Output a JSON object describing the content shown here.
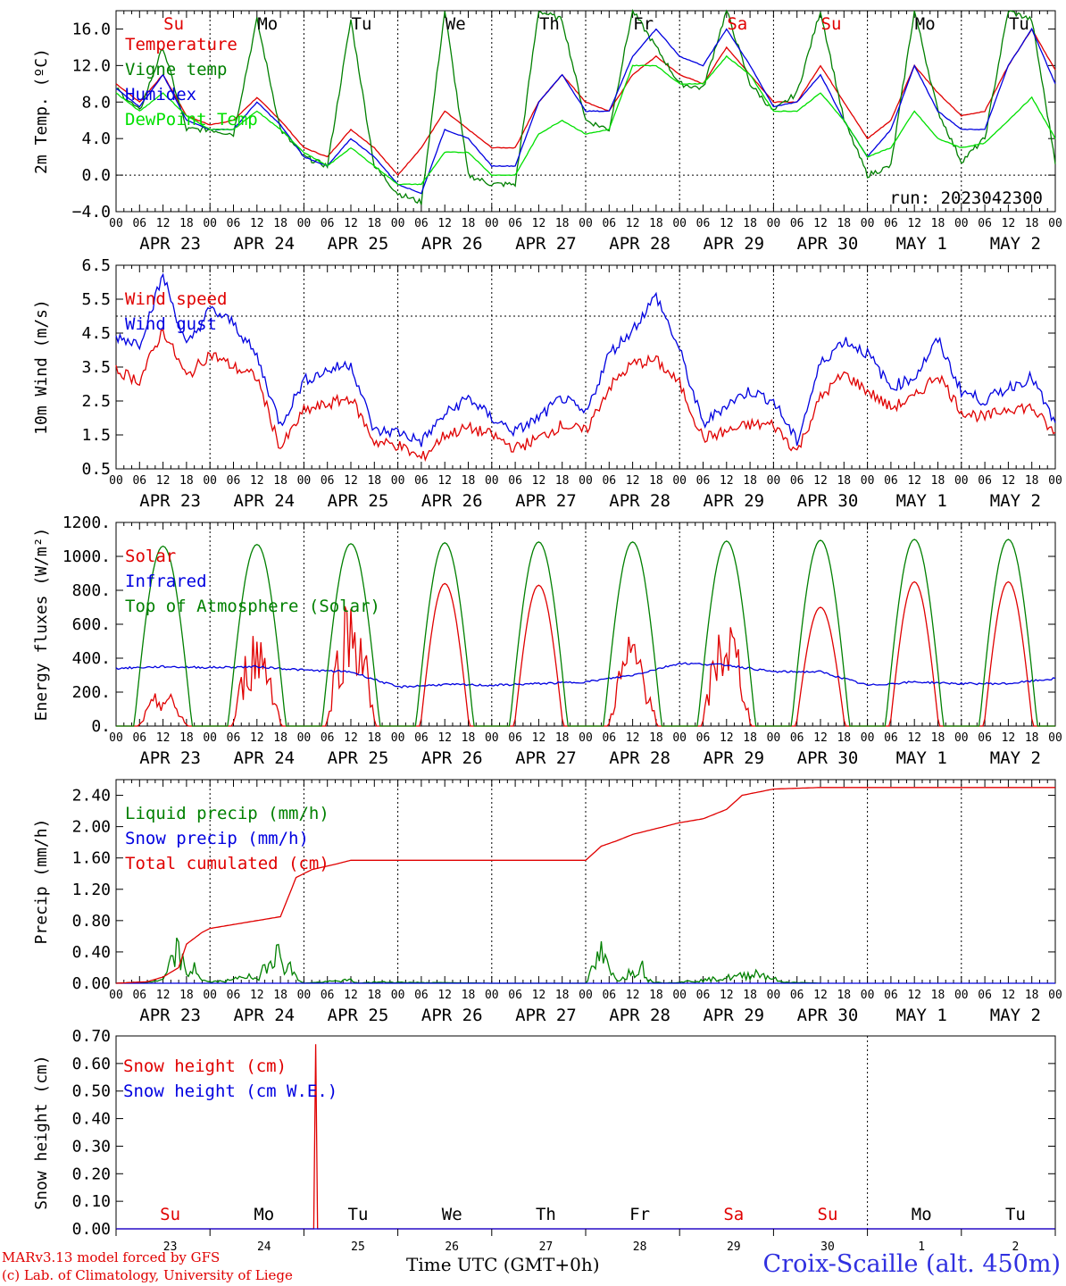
{
  "days": [
    "APR 23",
    "APR 24",
    "APR 25",
    "APR 26",
    "APR 27",
    "APR 28",
    "APR 29",
    "APR 30",
    "MAY  1",
    "MAY  2"
  ],
  "hour_labels": [
    "00",
    "06",
    "12",
    "18"
  ],
  "weekdays": [
    "Su",
    "Mo",
    "Tu",
    "We",
    "Th",
    "Fr",
    "Sa",
    "Su",
    "Mo",
    "Tu"
  ],
  "weekday_colors": [
    "#e00000",
    "#000000",
    "#000000",
    "#000000",
    "#000000",
    "#000000",
    "#e00000",
    "#e00000",
    "#000000",
    "#000000"
  ],
  "day_numbers": [
    "23",
    "24",
    "25",
    "26",
    "27",
    "28",
    "29",
    "30",
    "1",
    "2"
  ],
  "run_label": "run: 2023042300",
  "footer": {
    "model": "MARv3.13 model forced by GFS",
    "copyright": "(c) Lab. of Climatology, University of Liege",
    "time_axis": "Time UTC (GMT+0h)",
    "station": "Croix-Scaille (alt. 450m)"
  },
  "chart_data": [
    {
      "type": "line",
      "ylabel": "2m Temp. (ºC)",
      "ylim": [
        -4,
        18
      ],
      "yticks": [
        "16.0",
        "12.0",
        "8.0",
        "4.0",
        "0.0",
        "−4.0"
      ],
      "x_unit": "hours from 2023-04-23 00 UTC",
      "series": [
        {
          "name": "Temperature",
          "color": "#e00000",
          "x": [
            0,
            6,
            12,
            18,
            24,
            30,
            36,
            42,
            48,
            54,
            60,
            66,
            72,
            78,
            84,
            90,
            96,
            102,
            108,
            114,
            120,
            126,
            132,
            138,
            144,
            150,
            156,
            162,
            168,
            174,
            180,
            186,
            192,
            198,
            204,
            210,
            216,
            222,
            228,
            234,
            240
          ],
          "values": [
            10,
            8,
            11,
            6.5,
            5.5,
            6,
            8.5,
            6,
            3,
            2,
            5,
            3,
            0,
            3,
            7,
            5,
            3,
            3,
            8,
            11,
            8,
            7,
            11,
            13,
            11,
            10,
            14,
            11,
            8,
            8,
            12,
            8,
            4,
            6,
            12,
            9,
            6.5,
            7,
            12,
            16,
            11.5
          ]
        },
        {
          "name": "Vigne temp",
          "color": "#008000",
          "x": [
            0,
            6,
            12,
            18,
            24,
            30,
            36,
            42,
            48,
            54,
            60,
            66,
            72,
            78,
            84,
            90,
            96,
            102,
            108,
            114,
            120,
            126,
            132,
            138,
            144,
            150,
            156,
            162,
            168,
            174,
            180,
            186,
            192,
            198,
            204,
            210,
            216,
            222,
            228,
            234,
            240
          ],
          "values": [
            9.5,
            7,
            14,
            5,
            5,
            4.5,
            17,
            5,
            2,
            1,
            17,
            1,
            -2,
            -3,
            18,
            0,
            -1,
            -1,
            18,
            17,
            6,
            5,
            18,
            14,
            10,
            9.5,
            18,
            10,
            7,
            9,
            18,
            6,
            0,
            1,
            18,
            7,
            1.5,
            4,
            18,
            17,
            1.5
          ]
        },
        {
          "name": "Humidex",
          "color": "#0000e0",
          "x": [
            0,
            6,
            12,
            18,
            24,
            30,
            36,
            42,
            48,
            54,
            60,
            66,
            72,
            78,
            84,
            90,
            96,
            102,
            108,
            114,
            120,
            126,
            132,
            138,
            144,
            150,
            156,
            162,
            168,
            174,
            180,
            186,
            192,
            198,
            204,
            210,
            216,
            222,
            228,
            234,
            240
          ],
          "values": [
            9.5,
            7.5,
            11,
            6,
            5,
            5,
            8,
            5.5,
            2,
            1,
            4,
            2,
            -1,
            -2,
            5,
            4,
            1,
            1,
            8,
            11,
            7,
            7,
            13,
            16,
            13,
            12,
            16,
            12,
            7.5,
            8,
            11,
            6,
            2,
            5,
            12,
            7,
            5,
            5,
            12,
            16,
            10
          ]
        },
        {
          "name": "DewPoint Temp",
          "color": "#00e000",
          "x": [
            0,
            6,
            12,
            18,
            24,
            30,
            36,
            42,
            48,
            54,
            60,
            66,
            72,
            78,
            84,
            90,
            96,
            102,
            108,
            114,
            120,
            126,
            132,
            138,
            144,
            150,
            156,
            162,
            168,
            174,
            180,
            186,
            192,
            198,
            204,
            210,
            216,
            222,
            228,
            234,
            240
          ],
          "values": [
            9,
            7,
            9,
            6.5,
            5,
            5,
            7,
            5,
            2.5,
            1,
            3,
            1,
            -1,
            -1,
            2.5,
            2.5,
            0,
            0,
            4.5,
            6,
            4.5,
            5,
            12,
            12,
            10,
            10,
            13,
            11,
            7,
            7,
            9,
            6,
            2,
            3,
            7,
            4,
            3,
            3.5,
            6,
            8.5,
            4
          ]
        }
      ]
    },
    {
      "type": "line",
      "ylabel": "10m Wind (m/s)",
      "ylim": [
        0.5,
        6.5
      ],
      "yticks": [
        "6.5",
        "5.5",
        "4.5",
        "3.5",
        "2.5",
        "1.5",
        "0.5"
      ],
      "x_unit": "hours from 2023-04-23 00 UTC",
      "series": [
        {
          "name": "Wind speed",
          "color": "#e00000",
          "x": [
            0,
            6,
            12,
            18,
            24,
            30,
            36,
            42,
            48,
            54,
            60,
            66,
            72,
            78,
            84,
            90,
            96,
            102,
            108,
            114,
            120,
            126,
            132,
            138,
            144,
            150,
            156,
            162,
            168,
            174,
            180,
            186,
            192,
            198,
            204,
            210,
            216,
            222,
            228,
            234,
            240
          ],
          "values": [
            3.4,
            3.1,
            4.6,
            3.2,
            3.9,
            3.5,
            3.2,
            1.1,
            2.2,
            2.4,
            2.6,
            1.3,
            1.2,
            0.8,
            1.5,
            1.7,
            1.5,
            1.1,
            1.4,
            1.8,
            1.6,
            2.9,
            3.6,
            3.7,
            3.0,
            1.4,
            1.6,
            1.8,
            1.8,
            1.0,
            2.6,
            3.3,
            2.8,
            2.3,
            2.6,
            3.3,
            2.2,
            2.0,
            2.3,
            2.3,
            1.5
          ]
        },
        {
          "name": "Wind gust",
          "color": "#0000e0",
          "x": [
            0,
            6,
            12,
            18,
            24,
            30,
            36,
            42,
            48,
            54,
            60,
            66,
            72,
            78,
            84,
            90,
            96,
            102,
            108,
            114,
            120,
            126,
            132,
            138,
            144,
            150,
            156,
            162,
            168,
            174,
            180,
            186,
            192,
            198,
            204,
            210,
            216,
            222,
            228,
            234,
            240
          ],
          "values": [
            4.4,
            4.2,
            6.2,
            4.1,
            5.2,
            4.8,
            3.8,
            1.8,
            3.1,
            3.4,
            3.6,
            1.6,
            1.6,
            1.3,
            2.1,
            2.6,
            2.0,
            1.6,
            2.0,
            2.6,
            2.1,
            3.9,
            4.6,
            5.6,
            4.0,
            1.8,
            2.4,
            2.8,
            2.5,
            1.3,
            3.6,
            4.3,
            3.9,
            2.9,
            3.2,
            4.3,
            2.8,
            2.5,
            2.9,
            3.2,
            1.8
          ]
        }
      ]
    },
    {
      "type": "line",
      "ylabel": "Energy fluxes (W/m²)",
      "ylim": [
        0,
        1200
      ],
      "yticks": [
        "1200.",
        "1000.",
        "800.",
        "600.",
        "400.",
        "200.",
        "0."
      ],
      "x_unit": "hours from 2023-04-23 00 UTC",
      "series": [
        {
          "name": "Solar",
          "color": "#e00000",
          "daily_peak": [
            220,
            610,
            820,
            840,
            830,
            570,
            690,
            700,
            850,
            850
          ]
        },
        {
          "name": "Infrared",
          "color": "#0000e0",
          "x": [
            0,
            12,
            24,
            36,
            48,
            60,
            72,
            84,
            96,
            108,
            120,
            132,
            144,
            156,
            168,
            180,
            192,
            204,
            216,
            228,
            240
          ],
          "values": [
            340,
            350,
            345,
            350,
            330,
            320,
            230,
            245,
            240,
            250,
            260,
            300,
            370,
            360,
            320,
            320,
            240,
            260,
            250,
            250,
            280
          ]
        },
        {
          "name": "Top of Atmosphere (Solar)",
          "color": "#008000",
          "daily_peak": [
            1060,
            1070,
            1075,
            1080,
            1085,
            1085,
            1090,
            1095,
            1100,
            1100
          ]
        }
      ]
    },
    {
      "type": "line",
      "ylabel": "Precip (mm/h)",
      "ylim": [
        0,
        2.6
      ],
      "yticks": [
        "2.40",
        "2.00",
        "1.60",
        "1.20",
        "0.80",
        "0.40",
        "0.00"
      ],
      "x_unit": "hours from 2023-04-23 00 UTC",
      "series": [
        {
          "name": "Liquid precip (mm/h)",
          "color": "#008000",
          "x": [
            0,
            8,
            12,
            14,
            16,
            18,
            20,
            22,
            24,
            30,
            32,
            36,
            40,
            42,
            44,
            46,
            48,
            60,
            62,
            66,
            96,
            120,
            124,
            126,
            128,
            132,
            134,
            136,
            138,
            140,
            150,
            160,
            164,
            168,
            170,
            180
          ],
          "values": [
            0,
            0.02,
            0.05,
            0.3,
            0.6,
            0.1,
            0.3,
            0.05,
            0.02,
            0.05,
            0.15,
            0.05,
            0.6,
            0.4,
            0.3,
            0.1,
            0,
            0.05,
            0,
            0.02,
            0,
            0,
            0.5,
            0.2,
            0.05,
            0.2,
            0.35,
            0.05,
            0.02,
            0,
            0.05,
            0.12,
            0.18,
            0.08,
            0.02,
            0
          ]
        },
        {
          "name": "Snow precip (mm/h)",
          "color": "#0000e0",
          "x": [
            0,
            240
          ],
          "values": [
            0,
            0
          ]
        },
        {
          "name": "Total cumulated (cm)",
          "color": "#e00000",
          "x": [
            0,
            8,
            12,
            16,
            18,
            22,
            24,
            30,
            36,
            42,
            46,
            50,
            56,
            60,
            72,
            120,
            124,
            128,
            132,
            144,
            150,
            156,
            160,
            168,
            180,
            240
          ],
          "values": [
            0,
            0.02,
            0.08,
            0.2,
            0.5,
            0.65,
            0.7,
            0.75,
            0.8,
            0.85,
            1.35,
            1.45,
            1.52,
            1.57,
            1.57,
            1.57,
            1.75,
            1.82,
            1.9,
            2.05,
            2.1,
            2.22,
            2.4,
            2.48,
            2.5,
            2.5
          ]
        }
      ]
    },
    {
      "type": "line",
      "ylabel": "Snow height (cm)",
      "ylim": [
        0,
        0.7
      ],
      "yticks": [
        "0.70",
        "0.60",
        "0.50",
        "0.40",
        "0.30",
        "0.20",
        "0.10",
        "0.00"
      ],
      "x_unit": "hours from 2023-04-23 00 UTC",
      "series": [
        {
          "name": "Snow height (cm)",
          "color": "#e00000",
          "x": [
            0,
            50.8,
            51.0,
            51.2,
            240
          ],
          "values": [
            0,
            0,
            0.67,
            0,
            0
          ]
        },
        {
          "name": "Snow height (cm W.E.)",
          "color": "#0000e0",
          "x": [
            0,
            240
          ],
          "values": [
            0,
            0
          ]
        }
      ]
    }
  ]
}
